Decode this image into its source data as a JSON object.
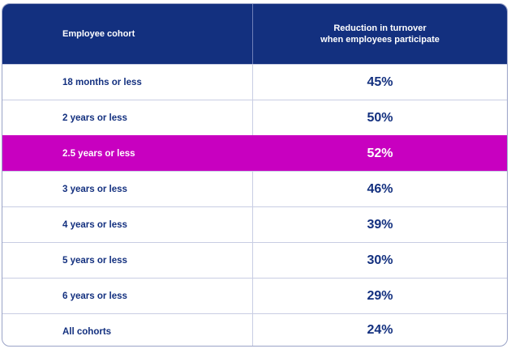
{
  "table": {
    "headers": {
      "cohort": "Employee cohort",
      "reduction_line1": "Reduction in turnover",
      "reduction_line2": "when employees participate"
    },
    "rows": [
      {
        "cohort": "18 months or less",
        "reduction": "45%"
      },
      {
        "cohort": "2 years or less",
        "reduction": "50%"
      },
      {
        "cohort": "2.5 years or less",
        "reduction": "52%"
      },
      {
        "cohort": "3 years or less",
        "reduction": "46%"
      },
      {
        "cohort": "4 years or less",
        "reduction": "39%"
      },
      {
        "cohort": "5 years or less",
        "reduction": "30%"
      },
      {
        "cohort": "6 years or less",
        "reduction": "29%"
      },
      {
        "cohort": "All cohorts",
        "reduction": "24%"
      }
    ],
    "highlighted_row": 2
  },
  "colors": {
    "header_bg": "#13307f",
    "highlight_bg": "#c800c0",
    "text": "#13307f"
  }
}
